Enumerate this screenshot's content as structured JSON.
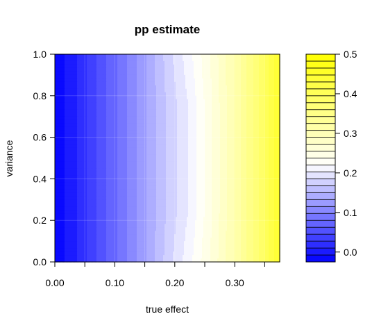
{
  "chart_data": {
    "type": "heatmap",
    "subtype": "filled-contour",
    "title": "pp estimate",
    "xlabel": "true effect",
    "ylabel": "variance",
    "xlim": [
      0,
      0.375
    ],
    "ylim": [
      0,
      1
    ],
    "x_ticks": [
      0,
      0.05,
      0.1,
      0.15,
      0.2,
      0.25,
      0.3,
      0.35
    ],
    "x_tick_labels": [
      "0.00",
      "0.10",
      "0.20",
      "0.30"
    ],
    "x_tick_label_values": [
      0,
      0.1,
      0.2,
      0.3
    ],
    "y_ticks": [
      0.0,
      0.2,
      0.4,
      0.6,
      0.8,
      1.0
    ],
    "y_tick_labels": [
      "0.0",
      "0.2",
      "0.4",
      "0.6",
      "0.8",
      "1.0"
    ],
    "legend": {
      "position": "right",
      "range": [
        -0.025,
        0.5
      ],
      "level_step": 0.0175,
      "ticks": [
        0.0,
        0.1,
        0.2,
        0.3,
        0.4,
        0.5
      ],
      "tick_labels": [
        "0.0",
        "0.1",
        "0.2",
        "0.3",
        "0.4",
        "0.5"
      ],
      "low_color": "#0000ff",
      "mid_color": "#ffffff",
      "high_color": "#ffff00",
      "mid_value": 0.22
    },
    "grid": true,
    "surface": {
      "description_of_values": "pp estimate as a function of true effect (x); nearly constant in variance",
      "x": [
        0.0,
        0.0375,
        0.075,
        0.1125,
        0.15,
        0.1875,
        0.225,
        0.2625,
        0.3,
        0.3375,
        0.375
      ],
      "y": [
        0.0,
        0.25,
        0.5,
        0.75,
        1.0
      ],
      "z": [
        [
          -0.02,
          0.01,
          0.05,
          0.09,
          0.13,
          0.175,
          0.215,
          0.26,
          0.31,
          0.37,
          0.45
        ],
        [
          -0.02,
          0.01,
          0.05,
          0.09,
          0.13,
          0.17,
          0.205,
          0.255,
          0.31,
          0.37,
          0.45
        ],
        [
          -0.02,
          0.01,
          0.05,
          0.09,
          0.13,
          0.17,
          0.205,
          0.255,
          0.31,
          0.37,
          0.45
        ],
        [
          -0.02,
          0.01,
          0.05,
          0.09,
          0.13,
          0.17,
          0.205,
          0.255,
          0.31,
          0.37,
          0.45
        ],
        [
          -0.02,
          0.01,
          0.05,
          0.09,
          0.13,
          0.175,
          0.215,
          0.26,
          0.31,
          0.37,
          0.45
        ]
      ]
    }
  }
}
